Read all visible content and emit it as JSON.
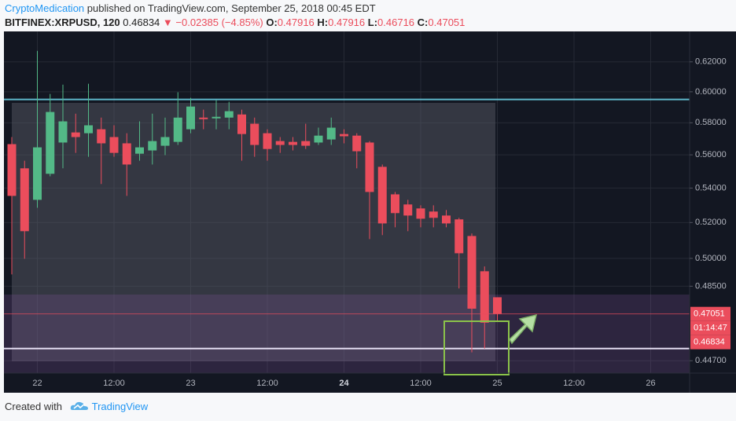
{
  "header": {
    "author": "CryptoMedication",
    "published": "published on TradingView.com, September 25, 2018 00:45 EDT",
    "symbol": "BITFINEX:XRPUSD, 120",
    "last": "0.46834",
    "arrow": "▼",
    "change": "−0.02385 (−4.85%)",
    "ohlc": [
      {
        "label": "O:",
        "value": "0.47916"
      },
      {
        "label": "H:",
        "value": "0.47916"
      },
      {
        "label": "L:",
        "value": "0.46716"
      },
      {
        "label": "C:",
        "value": "0.47051"
      }
    ]
  },
  "footer": {
    "prefix": "Created with",
    "brand": "TradingView"
  },
  "chart_data": {
    "type": "candlestick",
    "log_scale": true,
    "grid": true,
    "up_color": "#53b987",
    "down_color": "#eb4d5c",
    "ylim": [
      0.441,
      0.641
    ],
    "yticks": [
      {
        "value": 0.62,
        "label": "0.62000"
      },
      {
        "value": 0.6,
        "label": "0.60000"
      },
      {
        "value": 0.58,
        "label": "0.58000"
      },
      {
        "value": 0.56,
        "label": "0.56000"
      },
      {
        "value": 0.54,
        "label": "0.54000"
      },
      {
        "value": 0.52,
        "label": "0.52000"
      },
      {
        "value": 0.5,
        "label": "0.50000"
      },
      {
        "value": 0.485,
        "label": "0.48500"
      },
      {
        "value": 0.447,
        "label": "0.44700"
      }
    ],
    "xticks": [
      "22",
      "12:00",
      "23",
      "12:00",
      "24",
      "12:00",
      "25",
      "12:00",
      "26"
    ],
    "ohlc": {
      "open": [
        0.5666,
        0.5518,
        0.5331,
        0.5485,
        0.5676,
        0.5739,
        0.5734,
        0.5759,
        0.571,
        0.5671,
        0.5607,
        0.5627,
        0.5656,
        0.568,
        0.5759,
        0.5833,
        0.5828,
        0.5833,
        0.5853,
        0.5794,
        0.5734,
        0.5685,
        0.568,
        0.5685,
        0.5676,
        0.5695,
        0.5729,
        0.5719,
        0.5676,
        0.5527,
        0.5363,
        0.5304,
        0.5281,
        0.5263,
        0.524,
        0.5218,
        0.5124,
        0.493,
        0.47916
      ],
      "high": [
        0.571,
        0.5564,
        0.6275,
        0.5986,
        0.6047,
        0.5858,
        0.6053,
        0.5833,
        0.5784,
        0.5734,
        0.5809,
        0.5858,
        0.5833,
        0.5997,
        0.596,
        0.5884,
        0.5945,
        0.5935,
        0.5884,
        0.5833,
        0.5759,
        0.571,
        0.571,
        0.5794,
        0.5769,
        0.5833,
        0.5759,
        0.5734,
        0.5685,
        0.5541,
        0.5377,
        0.5331,
        0.5299,
        0.5299,
        0.5272,
        0.5227,
        0.5138,
        0.4956,
        0.47916
      ],
      "low": [
        0.4913,
        0.4998,
        0.5285,
        0.547,
        0.5518,
        0.5612,
        0.5588,
        0.5424,
        0.5588,
        0.5354,
        0.5564,
        0.5541,
        0.5598,
        0.5661,
        0.5734,
        0.5759,
        0.5759,
        0.5759,
        0.5564,
        0.5588,
        0.5564,
        0.5612,
        0.5627,
        0.5636,
        0.5661,
        0.5661,
        0.5671,
        0.5518,
        0.5107,
        0.5129,
        0.5173,
        0.5151,
        0.5173,
        0.5173,
        0.5173,
        0.4838,
        0.4511,
        0.453,
        0.46716
      ],
      "close": [
        0.5354,
        0.5151,
        0.5646,
        0.5869,
        0.5809,
        0.571,
        0.5784,
        0.5671,
        0.5612,
        0.5541,
        0.5646,
        0.5685,
        0.571,
        0.5833,
        0.5904,
        0.5823,
        0.5838,
        0.5874,
        0.5729,
        0.5661,
        0.5636,
        0.5661,
        0.5661,
        0.5656,
        0.5719,
        0.5769,
        0.5715,
        0.5622,
        0.5377,
        0.5195,
        0.5254,
        0.524,
        0.5222,
        0.5227,
        0.5195,
        0.5028,
        0.4732,
        0.466,
        0.47051
      ]
    },
    "hlines": [
      {
        "value": 0.595,
        "color": "#5fb8cc"
      },
      {
        "value": 0.453,
        "color": "#e3dcf0"
      }
    ],
    "price_labels": {
      "last": 0.47051,
      "countdown": "01:14:47",
      "line": 0.46834,
      "color": "#eb4d5c"
    }
  }
}
